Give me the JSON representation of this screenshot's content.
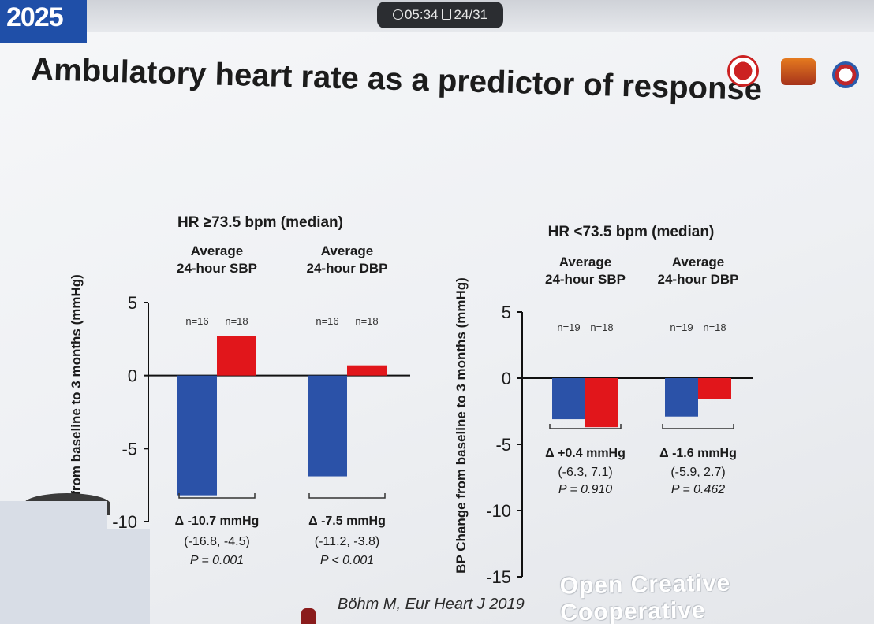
{
  "header": {
    "conference_badge": "2025",
    "timer": "05:34",
    "slide_counter": "24/31",
    "slide_title": "Ambulatory heart rate as a predictor of response"
  },
  "citation": "Böhm M, Eur Heart J 2019",
  "watermark": "Open Creative Cooperative",
  "colors": {
    "blue": "#2b52a8",
    "red": "#e1161b",
    "bg": "#f1f2f5"
  },
  "icons": {
    "timer": "clock-icon",
    "slide": "slide-icon"
  },
  "chart_data": [
    {
      "type": "bar",
      "title": "HR ≥73.5 bpm (median)",
      "ylabel": "Change from baseline to 3 months (mmHg)",
      "ylim": [
        -10,
        5
      ],
      "yticks": [
        "5",
        "0",
        "-5",
        "-10"
      ],
      "groups": [
        {
          "label": [
            "Average",
            "24-hour SBP"
          ],
          "bars": [
            {
              "n": "n=16",
              "value": -8.2,
              "color": "#2b52a8"
            },
            {
              "n": "n=18",
              "value": 2.7,
              "color": "#e1161b"
            }
          ],
          "delta": "Δ -10.7 mmHg",
          "ci": "(-16.8, -4.5)",
          "p": "P = 0.001"
        },
        {
          "label": [
            "Average",
            "24-hour DBP"
          ],
          "bars": [
            {
              "n": "n=16",
              "value": -6.9,
              "color": "#2b52a8"
            },
            {
              "n": "n=18",
              "value": 0.7,
              "color": "#e1161b"
            }
          ],
          "delta": "Δ -7.5 mmHg",
          "ci": "(-11.2, -3.8)",
          "p": "P < 0.001"
        }
      ]
    },
    {
      "type": "bar",
      "title": "HR <73.5 bpm (median)",
      "ylabel": "BP Change from baseline to 3 months (mmHg)",
      "ylim": [
        -15,
        5
      ],
      "yticks": [
        "5",
        "0",
        "-5",
        "-10",
        "-15"
      ],
      "groups": [
        {
          "label": [
            "Average",
            "24-hour SBP"
          ],
          "bars": [
            {
              "n": "n=19",
              "value": -3.1,
              "color": "#2b52a8"
            },
            {
              "n": "n=18",
              "value": -3.7,
              "color": "#e1161b"
            }
          ],
          "delta": "Δ +0.4 mmHg",
          "ci": "(-6.3, 7.1)",
          "p": "P = 0.910"
        },
        {
          "label": [
            "Average",
            "24-hour DBP"
          ],
          "bars": [
            {
              "n": "n=19",
              "value": -2.9,
              "color": "#2b52a8"
            },
            {
              "n": "n=18",
              "value": -1.6,
              "color": "#e1161b"
            }
          ],
          "delta": "Δ -1.6 mmHg",
          "ci": "(-5.9, 2.7)",
          "p": "P = 0.462"
        }
      ]
    }
  ]
}
